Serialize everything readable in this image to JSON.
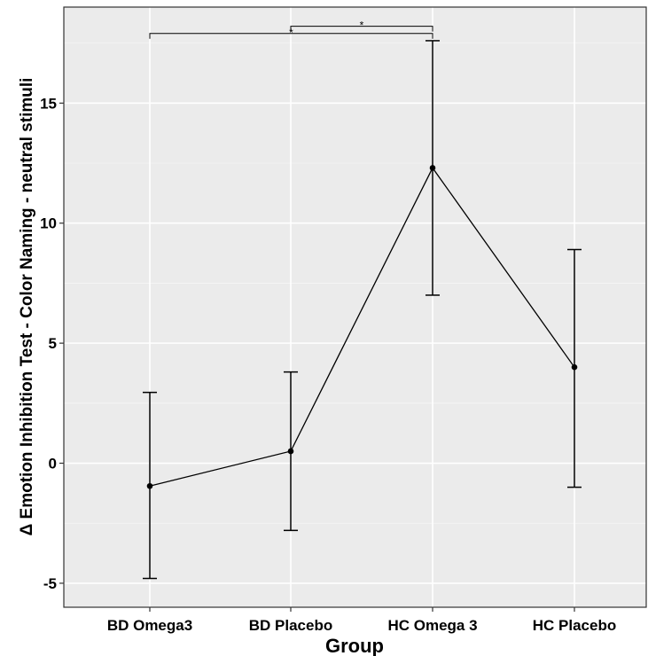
{
  "chart_data": {
    "type": "line",
    "title": "",
    "xlabel": "Group",
    "ylabel": "Δ Emotion Inhibition Test - Color Naming - neutral stimuli",
    "categories": [
      "BD Omega3",
      "BD Placebo",
      "HC Omega 3",
      "HC Placebo"
    ],
    "series": [
      {
        "values": [
          -0.95,
          0.5,
          12.3,
          4.0
        ],
        "error_low": [
          -4.8,
          -2.8,
          7.0,
          -1.0
        ],
        "error_high": [
          2.95,
          3.8,
          17.6,
          8.9
        ]
      }
    ],
    "ylim": [
      -6.0,
      19.0
    ],
    "yticks": [
      -5,
      0,
      5,
      10,
      15
    ],
    "grid": true,
    "significance": [
      {
        "from": "BD Omega3",
        "to": "HC Omega 3",
        "label": "*",
        "y": 17.9
      },
      {
        "from": "BD Placebo",
        "to": "HC Omega 3",
        "label": "*",
        "y": 18.2
      }
    ]
  }
}
